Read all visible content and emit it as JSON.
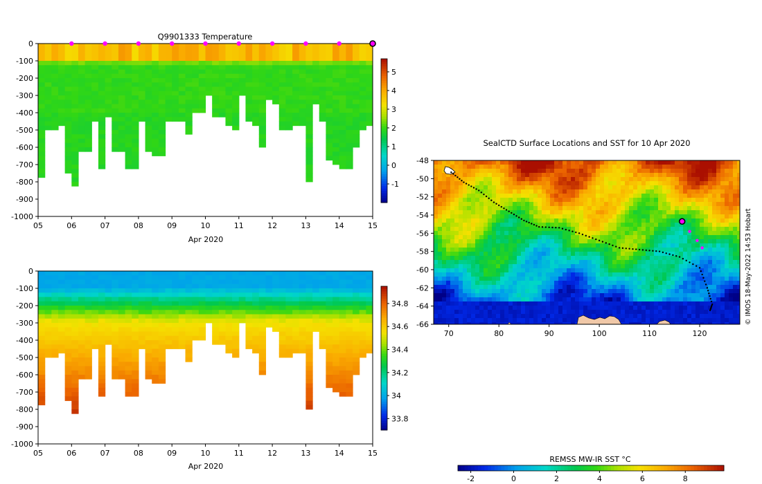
{
  "chart_data": [
    {
      "type": "heatmap",
      "title": "Q9901333  Temperature",
      "variable": "temperature",
      "xlabel": "Apr 2020",
      "x_ticks": [
        "05",
        "06",
        "07",
        "08",
        "09",
        "10",
        "11",
        "12",
        "13",
        "14",
        "15"
      ],
      "xlim": [
        5,
        15
      ],
      "y_ticks": [
        "0",
        "-100",
        "-200",
        "-300",
        "-400",
        "-500",
        "-600",
        "-700",
        "-800",
        "-900",
        "-1000"
      ],
      "ylim": [
        -1000,
        0
      ],
      "colorbar": {
        "ticks": [
          "5",
          "4",
          "3",
          "2",
          "1",
          "0",
          "-1"
        ],
        "range": [
          -2,
          5.7
        ]
      },
      "profile_markers_days": [
        6,
        7,
        8,
        9,
        10,
        11,
        12,
        13,
        14
      ],
      "current_marker_day": 15,
      "profile_days": [
        5.0,
        5.2,
        5.4,
        5.6,
        5.8,
        6.0,
        6.2,
        6.4,
        6.6,
        6.8,
        7.0,
        7.2,
        7.4,
        7.6,
        7.8,
        8.0,
        8.2,
        8.4,
        8.6,
        8.8,
        9.0,
        9.2,
        9.4,
        9.6,
        9.8,
        10.0,
        10.2,
        10.4,
        10.6,
        10.8,
        11.0,
        11.2,
        11.4,
        11.6,
        11.8,
        12.0,
        12.2,
        12.4,
        12.6,
        12.8,
        13.0,
        13.2,
        13.4,
        13.6,
        13.8,
        14.0,
        14.2,
        14.4,
        14.6,
        14.8
      ],
      "profile_max_depths": [
        -760,
        -500,
        -500,
        -470,
        -750,
        -815,
        -620,
        -620,
        -450,
        -720,
        -420,
        -620,
        -620,
        -720,
        -720,
        -450,
        -620,
        -640,
        -640,
        -450,
        -450,
        -450,
        -520,
        -400,
        -400,
        -300,
        -420,
        -420,
        -470,
        -490,
        -300,
        -450,
        -470,
        -600,
        -320,
        -340,
        -480,
        -480,
        -460,
        -460,
        -800,
        -340,
        -440,
        -660,
        -690,
        -715,
        -715,
        -580,
        -500,
        -460
      ]
    },
    {
      "type": "heatmap",
      "title": "",
      "variable": "salinity",
      "xlabel": "Apr 2020",
      "x_ticks": [
        "05",
        "06",
        "07",
        "08",
        "09",
        "10",
        "11",
        "12",
        "13",
        "14",
        "15"
      ],
      "xlim": [
        5,
        15
      ],
      "y_ticks": [
        "0",
        "-100",
        "-200",
        "-300",
        "-400",
        "-500",
        "-600",
        "-700",
        "-800",
        "-900",
        "-1000"
      ],
      "ylim": [
        -1000,
        0
      ],
      "colorbar": {
        "ticks": [
          "34.8",
          "34.6",
          "34.4",
          "34.2",
          "34",
          "33.8"
        ],
        "range": [
          33.7,
          34.95
        ]
      }
    },
    {
      "type": "heatmap",
      "title": "SealCTD Surface Locations and SST for 10 Apr 2020",
      "xlabel": "",
      "x_ticks": [
        "70",
        "80",
        "90",
        "100",
        "110",
        "120"
      ],
      "xlim": [
        67,
        128
      ],
      "y_ticks": [
        "-48",
        "-50",
        "-52",
        "-54",
        "-56",
        "-58",
        "-60",
        "-62",
        "-64",
        "-66"
      ],
      "ylim": [
        -66,
        -48
      ],
      "colorbar_label": "REMSS MW-IR SST °C",
      "colorbar_ticks": [
        "-2",
        "0",
        "2",
        "4",
        "6",
        "8"
      ],
      "colorbar_range": [
        -2.6,
        9.8
      ],
      "track_lon_lat": [
        [
          70.5,
          -49.3
        ],
        [
          73,
          -50.4
        ],
        [
          76,
          -51.3
        ],
        [
          79,
          -52.6
        ],
        [
          82,
          -53.6
        ],
        [
          85,
          -54.6
        ],
        [
          88,
          -55.3
        ],
        [
          92,
          -55.4
        ],
        [
          96,
          -56.0
        ],
        [
          100,
          -56.8
        ],
        [
          104,
          -57.6
        ],
        [
          108,
          -57.8
        ],
        [
          112,
          -58.0
        ],
        [
          116,
          -58.6
        ],
        [
          120,
          -59.8
        ],
        [
          121.5,
          -62.0
        ],
        [
          122.5,
          -63.8
        ],
        [
          122,
          -64.6
        ]
      ],
      "recent_track_lon_lat": [
        [
          116.5,
          -54.7
        ],
        [
          118,
          -55.8
        ],
        [
          119.5,
          -56.8
        ],
        [
          120.5,
          -57.6
        ]
      ],
      "current_position_lon_lat": [
        116.5,
        -54.7
      ],
      "credit": "© IMOS 18-May-2022 14:53 Hobart"
    }
  ],
  "labels": {
    "t_title": "Q9901333  Temperature",
    "t_xlabel": "Apr 2020",
    "s_xlabel": "Apr 2020",
    "map_title": "SealCTD Surface Locations and SST for 10 Apr 2020",
    "map_cbar_label": "REMSS MW-IR SST °C",
    "credit": "© IMOS 18-May-2022 14:53 Hobart"
  }
}
